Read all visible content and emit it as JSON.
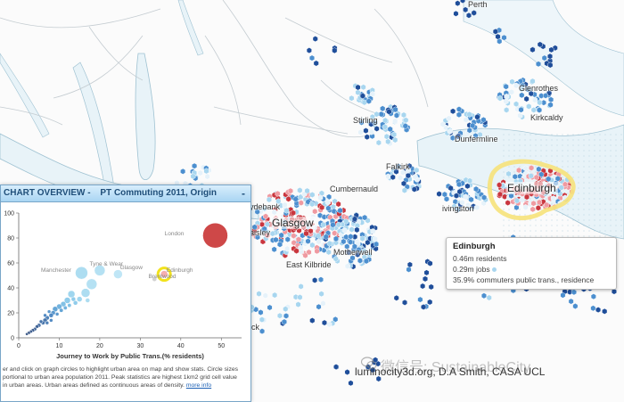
{
  "map": {
    "places": [
      {
        "id": "perth",
        "label": "Perth"
      },
      {
        "id": "glenrothes",
        "label": "Glenrothes"
      },
      {
        "id": "kirkcaldy",
        "label": "Kirkcaldy"
      },
      {
        "id": "stirling",
        "label": "Stirling"
      },
      {
        "id": "dunfermline",
        "label": "Dunfermline"
      },
      {
        "id": "falkirk",
        "label": "Falkirk"
      },
      {
        "id": "cumbernauld",
        "label": "Cumbernauld"
      },
      {
        "id": "clydebank",
        "label": "ydebank"
      },
      {
        "id": "glasgow",
        "label": "Glasgow"
      },
      {
        "id": "paisley",
        "label": "aisley"
      },
      {
        "id": "livingston",
        "label": "ivingston"
      },
      {
        "id": "motherwell",
        "label": "Motherwell"
      },
      {
        "id": "eastkilbride",
        "label": "East Kilbride"
      },
      {
        "id": "edinburgh",
        "label": "Edinburgh"
      },
      {
        "id": "ick",
        "label": "ick"
      }
    ]
  },
  "tooltip": {
    "title": "Edinburgh",
    "residents": "0.46m residents",
    "jobs": "0.29m jobs",
    "commuters": "35.9% commuters public trans., residence"
  },
  "panel": {
    "title": "CHART OVERVIEW -",
    "subtitle": "PT Commuting 2011, Origin",
    "collapse": "-",
    "notes": [
      "er and click on graph circles to highlight urban area on map and show stats. Circle sizes",
      "portional to urban area population 2011. Peak statistics are highest 1km2 grid cell value",
      "in urban areas. Urban areas defined as continuous areas of density."
    ],
    "more_info": "more info"
  },
  "chart_data": {
    "type": "scatter",
    "title": "",
    "xlabel": "Journey to Work by Public Trans.(% residents)",
    "ylabel": "",
    "xlim": [
      0,
      55
    ],
    "ylim": [
      0,
      100
    ],
    "xticks": [
      0,
      10,
      20,
      30,
      40,
      50
    ],
    "yticks": [
      0,
      20,
      40,
      60,
      80,
      100
    ],
    "highlight": "Edinburgh",
    "points": [
      {
        "label": "London",
        "x": 48.5,
        "y": 82,
        "size": 14,
        "color": "#c62828"
      },
      {
        "label": "Manchester",
        "x": 15.5,
        "y": 52,
        "size": 7,
        "color": "#9fd7ef"
      },
      {
        "label": "Tyne & Wear",
        "x": 20,
        "y": 54,
        "size": 6,
        "color": "#a8dcf1"
      },
      {
        "label": "Glasgow",
        "x": 24.5,
        "y": 51,
        "size": 5,
        "color": "#b5e2f4"
      },
      {
        "label": "Edinburgh",
        "x": 35.9,
        "y": 51,
        "size": 4,
        "color": "#f3a0a0"
      },
      {
        "label": "Brentwood",
        "x": 33.5,
        "y": 47,
        "size": 2.5,
        "color": "#c9c9c9"
      },
      {
        "label": "",
        "x": 18,
        "y": 43,
        "size": 6,
        "color": "#a8dcf1"
      },
      {
        "label": "",
        "x": 16.5,
        "y": 36,
        "size": 5,
        "color": "#9fd7ef"
      },
      {
        "label": "",
        "x": 13,
        "y": 35,
        "size": 4,
        "color": "#8ecfec"
      },
      {
        "label": "",
        "x": 12,
        "y": 30,
        "size": 3.5,
        "color": "#7cc3e8"
      },
      {
        "label": "",
        "x": 11,
        "y": 27,
        "size": 3,
        "color": "#6cb6e1"
      },
      {
        "label": "",
        "x": 10,
        "y": 25,
        "size": 3,
        "color": "#5aa6d8"
      },
      {
        "label": "",
        "x": 9,
        "y": 23,
        "size": 3,
        "color": "#4a96cf"
      },
      {
        "label": "",
        "x": 8.5,
        "y": 20,
        "size": 2.5,
        "color": "#3f86c4"
      },
      {
        "label": "",
        "x": 8,
        "y": 18,
        "size": 2.5,
        "color": "#3577b8"
      },
      {
        "label": "",
        "x": 7,
        "y": 16,
        "size": 2.5,
        "color": "#2e6aaa"
      },
      {
        "label": "",
        "x": 6.5,
        "y": 14,
        "size": 2.5,
        "color": "#2a5f9e"
      },
      {
        "label": "",
        "x": 6,
        "y": 12,
        "size": 2.2,
        "color": "#2a5f9e"
      },
      {
        "label": "",
        "x": 5,
        "y": 10,
        "size": 2.2,
        "color": "#275593"
      },
      {
        "label": "",
        "x": 4.5,
        "y": 9,
        "size": 2,
        "color": "#244d88"
      },
      {
        "label": "",
        "x": 4,
        "y": 7,
        "size": 2,
        "color": "#244d88"
      },
      {
        "label": "",
        "x": 3.5,
        "y": 6,
        "size": 2,
        "color": "#22477f"
      },
      {
        "label": "",
        "x": 3,
        "y": 5,
        "size": 1.8,
        "color": "#22477f"
      },
      {
        "label": "",
        "x": 2.5,
        "y": 4,
        "size": 1.8,
        "color": "#204277"
      },
      {
        "label": "",
        "x": 2,
        "y": 3,
        "size": 1.6,
        "color": "#204277"
      },
      {
        "label": "",
        "x": 7.5,
        "y": 21,
        "size": 2,
        "color": "#3f86c4"
      },
      {
        "label": "",
        "x": 9.5,
        "y": 19,
        "size": 2,
        "color": "#3f86c4"
      },
      {
        "label": "",
        "x": 10.5,
        "y": 22,
        "size": 2.2,
        "color": "#4a96cf"
      },
      {
        "label": "",
        "x": 11.5,
        "y": 24,
        "size": 2.2,
        "color": "#5aa6d8"
      },
      {
        "label": "",
        "x": 12.5,
        "y": 26,
        "size": 2.2,
        "color": "#6cb6e1"
      },
      {
        "label": "",
        "x": 14,
        "y": 28,
        "size": 2.5,
        "color": "#7cc3e8"
      },
      {
        "label": "",
        "x": 15,
        "y": 31,
        "size": 3,
        "color": "#8ecfec"
      },
      {
        "label": "",
        "x": 7,
        "y": 12,
        "size": 2,
        "color": "#2e6aaa"
      },
      {
        "label": "",
        "x": 8,
        "y": 14,
        "size": 2,
        "color": "#3577b8"
      },
      {
        "label": "",
        "x": 5.5,
        "y": 13,
        "size": 2,
        "color": "#2a5f9e"
      },
      {
        "label": "",
        "x": 6.5,
        "y": 18,
        "size": 2,
        "color": "#3577b8"
      },
      {
        "label": "",
        "x": 13.5,
        "y": 31,
        "size": 2.5,
        "color": "#7cc3e8"
      },
      {
        "label": "",
        "x": 17,
        "y": 30,
        "size": 2.5,
        "color": "#9fd7ef"
      }
    ],
    "labels": [
      {
        "text": "London",
        "x": 36,
        "y": 82
      },
      {
        "text": "Manchester",
        "x": 5.5,
        "y": 53
      },
      {
        "text": "Tyne & Wear",
        "x": 17.5,
        "y": 58
      },
      {
        "text": "Glasgow",
        "x": 25,
        "y": 55
      },
      {
        "text": "Edinburgh",
        "x": 36.5,
        "y": 53
      },
      {
        "text": "Brentwood",
        "x": 32,
        "y": 48
      }
    ]
  },
  "credit": "luminocity3d.org,  D.A Smith, CASA UCL",
  "watermark": "微信号: SustainableCity",
  "colors": {
    "water": "#e8f3f8",
    "water_edge": "#9fc2d2",
    "road": "#bcc6cc",
    "hex_dark": "#1f4e9a",
    "hex_mid": "#4c8fcf",
    "hex_light": "#a8d6ef",
    "hex_pale": "#e6f2fa",
    "hex_red": "#c9363e",
    "hex_pink": "#ef9aa1",
    "edinburgh_halo": "#f6e27a",
    "panel_header": "#a9d5f3"
  }
}
